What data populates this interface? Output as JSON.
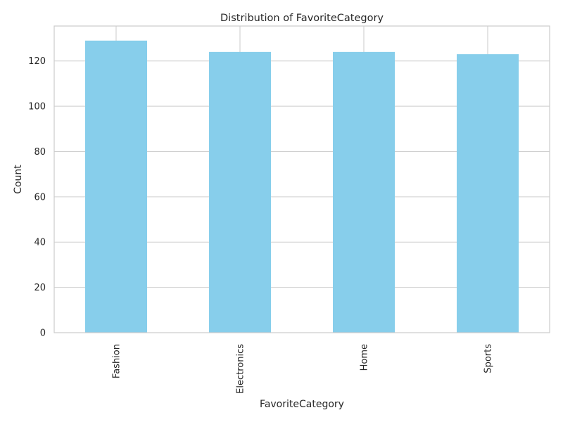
{
  "chart_data": {
    "type": "bar",
    "title": "Distribution of FavoriteCategory",
    "xlabel": "FavoriteCategory",
    "ylabel": "Count",
    "categories": [
      "Fashion",
      "Electronics",
      "Home",
      "Sports"
    ],
    "values": [
      129,
      124,
      124,
      123
    ],
    "ylim": [
      0,
      135.45
    ],
    "yticks": [
      0,
      20,
      40,
      60,
      80,
      100,
      120
    ],
    "grid": true,
    "bar_color": "#87ceeb"
  }
}
